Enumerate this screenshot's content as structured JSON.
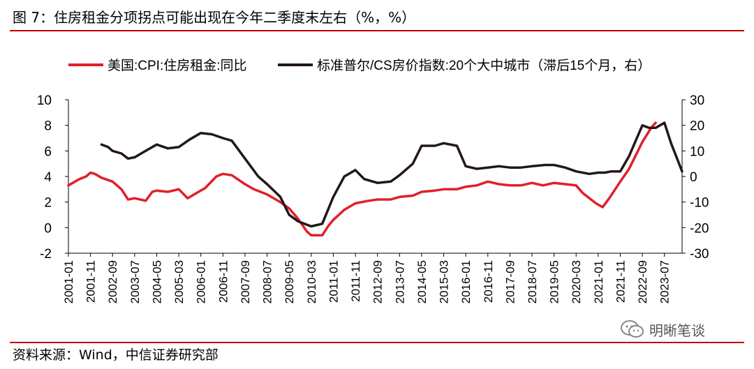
{
  "figure_title": "图 7：住房租金分项拐点可能出现在今年二季度末左右（%，%）",
  "source": "资料来源：Wind，中信证券研究部",
  "watermark": "明晰笔谈",
  "chart_data": {
    "type": "line",
    "title": "图 7：住房租金分项拐点可能出现在今年二季度末左右（%，%）",
    "legend_position": "top",
    "grid": false,
    "x_ticks": [
      "2001-01",
      "2001-11",
      "2002-09",
      "2003-07",
      "2004-05",
      "2005-03",
      "2006-01",
      "2006-11",
      "2007-09",
      "2008-07",
      "2009-05",
      "2010-03",
      "2011-01",
      "2011-11",
      "2012-09",
      "2013-07",
      "2014-05",
      "2015-03",
      "2016-01",
      "2016-11",
      "2017-09",
      "2018-07",
      "2019-05",
      "2020-03",
      "2021-01",
      "2021-11",
      "2022-09",
      "2023-07"
    ],
    "y_left": {
      "min": -2,
      "max": 10,
      "ticks": [
        -2,
        0,
        2,
        4,
        6,
        8,
        10
      ]
    },
    "y_right": {
      "min": -30,
      "max": 30,
      "ticks": [
        -30,
        -20,
        -10,
        0,
        10,
        20,
        30
      ]
    },
    "series": [
      {
        "name": "美国:CPI:住房租金:同比",
        "color": "#e0202a",
        "axis": "left",
        "points": [
          [
            "2001-01",
            3.3
          ],
          [
            "2001-06",
            3.8
          ],
          [
            "2001-09",
            4.0
          ],
          [
            "2001-11",
            4.3
          ],
          [
            "2002-01",
            4.2
          ],
          [
            "2002-04",
            3.9
          ],
          [
            "2002-09",
            3.6
          ],
          [
            "2003-01",
            3.0
          ],
          [
            "2003-04",
            2.2
          ],
          [
            "2003-07",
            2.3
          ],
          [
            "2003-12",
            2.1
          ],
          [
            "2004-03",
            2.8
          ],
          [
            "2004-05",
            2.9
          ],
          [
            "2004-10",
            2.8
          ],
          [
            "2005-03",
            3.0
          ],
          [
            "2005-07",
            2.3
          ],
          [
            "2005-11",
            2.7
          ],
          [
            "2006-03",
            3.1
          ],
          [
            "2006-08",
            4.0
          ],
          [
            "2006-11",
            4.2
          ],
          [
            "2007-03",
            4.1
          ],
          [
            "2007-09",
            3.4
          ],
          [
            "2008-01",
            3.0
          ],
          [
            "2008-07",
            2.6
          ],
          [
            "2009-01",
            2.0
          ],
          [
            "2009-05",
            1.5
          ],
          [
            "2009-09",
            0.7
          ],
          [
            "2010-01",
            -0.3
          ],
          [
            "2010-03",
            -0.6
          ],
          [
            "2010-08",
            -0.6
          ],
          [
            "2010-11",
            0.2
          ],
          [
            "2011-01",
            0.6
          ],
          [
            "2011-06",
            1.4
          ],
          [
            "2011-11",
            1.9
          ],
          [
            "2012-05",
            2.1
          ],
          [
            "2012-09",
            2.2
          ],
          [
            "2013-03",
            2.2
          ],
          [
            "2013-07",
            2.4
          ],
          [
            "2014-01",
            2.5
          ],
          [
            "2014-05",
            2.8
          ],
          [
            "2014-11",
            2.9
          ],
          [
            "2015-03",
            3.0
          ],
          [
            "2015-09",
            3.0
          ],
          [
            "2016-01",
            3.2
          ],
          [
            "2016-06",
            3.3
          ],
          [
            "2016-11",
            3.6
          ],
          [
            "2017-04",
            3.4
          ],
          [
            "2017-09",
            3.3
          ],
          [
            "2018-02",
            3.3
          ],
          [
            "2018-07",
            3.5
          ],
          [
            "2018-12",
            3.3
          ],
          [
            "2019-05",
            3.5
          ],
          [
            "2019-10",
            3.4
          ],
          [
            "2020-03",
            3.3
          ],
          [
            "2020-06",
            2.7
          ],
          [
            "2020-12",
            1.9
          ],
          [
            "2021-03",
            1.6
          ],
          [
            "2021-06",
            2.3
          ],
          [
            "2021-11",
            3.6
          ],
          [
            "2022-03",
            4.6
          ],
          [
            "2022-09",
            6.7
          ],
          [
            "2023-01",
            7.8
          ],
          [
            "2023-03",
            8.2
          ]
        ]
      },
      {
        "name": "标准普尔/CS房价指数:20个大中城市（滞后15个月，右）",
        "color": "#231815",
        "axis": "right",
        "points": [
          [
            "2002-04",
            12.5
          ],
          [
            "2002-07",
            11.5
          ],
          [
            "2002-09",
            10.0
          ],
          [
            "2003-01",
            9.0
          ],
          [
            "2003-04",
            7.0
          ],
          [
            "2003-07",
            7.5
          ],
          [
            "2003-12",
            10.0
          ],
          [
            "2004-05",
            12.5
          ],
          [
            "2004-10",
            11.0
          ],
          [
            "2005-03",
            11.5
          ],
          [
            "2005-08",
            14.5
          ],
          [
            "2006-01",
            17.0
          ],
          [
            "2006-06",
            16.5
          ],
          [
            "2006-11",
            15.0
          ],
          [
            "2007-03",
            14.0
          ],
          [
            "2007-09",
            7.0
          ],
          [
            "2008-03",
            0.0
          ],
          [
            "2008-07",
            -3.0
          ],
          [
            "2009-01",
            -8.0
          ],
          [
            "2009-05",
            -15.0
          ],
          [
            "2009-09",
            -17.5
          ],
          [
            "2010-03",
            -19.5
          ],
          [
            "2010-08",
            -18.5
          ],
          [
            "2011-01",
            -8.0
          ],
          [
            "2011-06",
            0.0
          ],
          [
            "2011-11",
            2.5
          ],
          [
            "2012-03",
            -1.0
          ],
          [
            "2012-09",
            -2.5
          ],
          [
            "2013-03",
            -2.0
          ],
          [
            "2013-07",
            0.5
          ],
          [
            "2014-01",
            5.0
          ],
          [
            "2014-05",
            12.0
          ],
          [
            "2014-11",
            12.0
          ],
          [
            "2015-03",
            13.0
          ],
          [
            "2015-09",
            12.0
          ],
          [
            "2016-01",
            4.0
          ],
          [
            "2016-06",
            3.0
          ],
          [
            "2016-11",
            3.5
          ],
          [
            "2017-04",
            4.0
          ],
          [
            "2017-09",
            3.5
          ],
          [
            "2018-02",
            3.5
          ],
          [
            "2018-07",
            4.0
          ],
          [
            "2019-01",
            4.5
          ],
          [
            "2019-05",
            4.5
          ],
          [
            "2019-10",
            3.5
          ],
          [
            "2020-03",
            2.0
          ],
          [
            "2020-09",
            1.0
          ],
          [
            "2021-01",
            1.5
          ],
          [
            "2021-04",
            1.5
          ],
          [
            "2021-07",
            2.0
          ],
          [
            "2021-11",
            2.0
          ],
          [
            "2022-03",
            8.0
          ],
          [
            "2022-09",
            20.0
          ],
          [
            "2022-12",
            19.0
          ],
          [
            "2023-03",
            19.0
          ],
          [
            "2023-07",
            21.0
          ],
          [
            "2023-10",
            13.0
          ],
          [
            "2024-03",
            2.0
          ]
        ]
      }
    ]
  }
}
